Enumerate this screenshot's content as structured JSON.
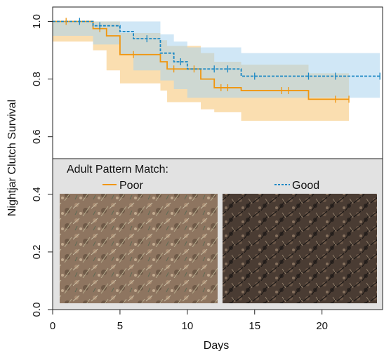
{
  "chart_data": {
    "type": "line",
    "subtype": "kaplan-meier step survival curves with confidence bands",
    "xlabel": "Days",
    "ylabel": "Nightjar Clutch Survival",
    "xlim": [
      0,
      24.5
    ],
    "ylim": [
      0,
      1.05
    ],
    "x_ticks": [
      "0",
      "5",
      "10",
      "15",
      "20"
    ],
    "y_ticks": [
      "0.0",
      "0.2",
      "0.4",
      "0.6",
      "0.8",
      "1.0"
    ],
    "grid": false,
    "legend": {
      "title": "Adult Pattern Match:",
      "placement": "inside bottom panel, top",
      "entries": [
        "Poor",
        "Good"
      ]
    },
    "inset_panel": {
      "ylim_covered": [
        0,
        0.52
      ],
      "background": "#e2e2e2",
      "photos": [
        "poor-match-nest-photo",
        "good-match-nest-photo"
      ]
    },
    "series": [
      {
        "name": "Poor",
        "color": "#f0960f",
        "band_color": "#f5c36f",
        "line_style": "solid",
        "steps": [
          {
            "x": 0,
            "y": 1.0
          },
          {
            "x": 3,
            "y": 0.975
          },
          {
            "x": 4,
            "y": 0.95
          },
          {
            "x": 5,
            "y": 0.885
          },
          {
            "x": 8,
            "y": 0.86
          },
          {
            "x": 8.5,
            "y": 0.835
          },
          {
            "x": 11,
            "y": 0.8
          },
          {
            "x": 12,
            "y": 0.77
          },
          {
            "x": 14,
            "y": 0.76
          },
          {
            "x": 19,
            "y": 0.73
          },
          {
            "x": 22,
            "y": 0.73
          }
        ],
        "ci_steps": [
          {
            "x": 0,
            "lo": 1.0,
            "hi": 1.0
          },
          {
            "x": 3,
            "lo": 0.93,
            "hi": 1.0
          },
          {
            "x": 4,
            "lo": 0.9,
            "hi": 1.0
          },
          {
            "x": 5,
            "lo": 0.83,
            "hi": 0.96
          },
          {
            "x": 8,
            "lo": 0.785,
            "hi": 0.935
          },
          {
            "x": 8.5,
            "lo": 0.76,
            "hi": 0.915
          },
          {
            "x": 11,
            "lo": 0.72,
            "hi": 0.89
          },
          {
            "x": 12,
            "lo": 0.695,
            "hi": 0.86
          },
          {
            "x": 14,
            "lo": 0.685,
            "hi": 0.85
          },
          {
            "x": 19,
            "lo": 0.655,
            "hi": 0.82
          },
          {
            "x": 22,
            "lo": 0.655,
            "hi": 0.82
          }
        ],
        "censored_x": [
          1,
          3.5,
          6,
          9,
          10.5,
          12.5,
          13,
          17,
          17.5,
          21,
          22
        ]
      },
      {
        "name": "Good",
        "color": "#1a87c4",
        "band_color": "#a9d3ee",
        "line_style": "dashed",
        "steps": [
          {
            "x": 0,
            "y": 1.0
          },
          {
            "x": 3,
            "y": 0.985
          },
          {
            "x": 5,
            "y": 0.965
          },
          {
            "x": 6,
            "y": 0.94
          },
          {
            "x": 8,
            "y": 0.89
          },
          {
            "x": 9,
            "y": 0.86
          },
          {
            "x": 10,
            "y": 0.835
          },
          {
            "x": 14,
            "y": 0.81
          },
          {
            "x": 24.3,
            "y": 0.81
          }
        ],
        "ci_steps": [
          {
            "x": 0,
            "lo": 1.0,
            "hi": 1.0
          },
          {
            "x": 3,
            "lo": 0.95,
            "hi": 1.0
          },
          {
            "x": 5,
            "lo": 0.92,
            "hi": 1.0
          },
          {
            "x": 6,
            "lo": 0.885,
            "hi": 1.0
          },
          {
            "x": 8,
            "lo": 0.83,
            "hi": 0.955
          },
          {
            "x": 9,
            "lo": 0.795,
            "hi": 0.93
          },
          {
            "x": 10,
            "lo": 0.765,
            "hi": 0.91
          },
          {
            "x": 14,
            "lo": 0.735,
            "hi": 0.89
          },
          {
            "x": 24.3,
            "lo": 0.735,
            "hi": 0.89
          }
        ],
        "censored_x": [
          2,
          3.5,
          7,
          9.5,
          12,
          13,
          15,
          19,
          21,
          24.3
        ]
      }
    ]
  }
}
